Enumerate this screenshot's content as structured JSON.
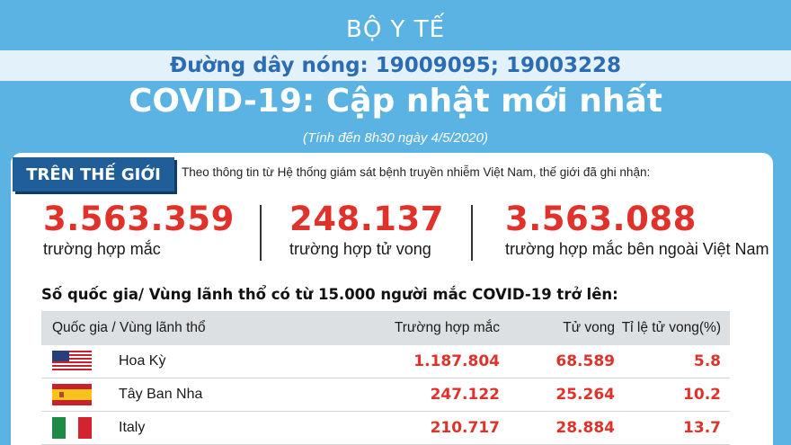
{
  "header": {
    "ministry": "BỘ Y TẾ",
    "hotline": "Đường dây nóng: 19009095; 19003228",
    "title": "COVID-19: Cập nhật mới nhất",
    "date_note": "(Tính đến 8h30 ngày 4/5/2020)"
  },
  "world": {
    "tag": "TRÊN THẾ GIỚI",
    "intro": "Theo thông tin từ Hệ thống giám sát bệnh truyền nhiễm Việt Nam, thế giới đã ghi nhận:",
    "stats": [
      {
        "value": "3.563.359",
        "label": "trường hợp mắc"
      },
      {
        "value": "248.137",
        "label": "trường hợp tử vong"
      },
      {
        "value": "3.563.088",
        "label": "trường hợp  mắc bên ngoài Việt Nam"
      }
    ]
  },
  "table": {
    "heading": "Số quốc gia/ Vùng lãnh thổ có từ 15.000 người  mắc COVID-19 trở lên:",
    "columns": [
      "Quốc gia / Vùng lãnh thổ",
      "Trường hợp mắc",
      "Tử vong",
      "Tỉ lệ tử vong(%)"
    ],
    "rows": [
      {
        "flag": "usa-flag-icon",
        "country": "Hoa Kỳ",
        "cases": "1.187.804",
        "deaths": "68.589",
        "rate": "5.8"
      },
      {
        "flag": "spain-flag-icon",
        "country": "Tây Ban Nha",
        "cases": "247.122",
        "deaths": "25.264",
        "rate": "10.2"
      },
      {
        "flag": "italy-flag-icon",
        "country": "Italy",
        "cases": "210.717",
        "deaths": "28.884",
        "rate": "13.7"
      }
    ]
  },
  "colors": {
    "background": "#5ab3e2",
    "accent_red": "#e0322b",
    "tag_blue": "#1f5e99",
    "hotline_blue": "#2b6cb5"
  }
}
